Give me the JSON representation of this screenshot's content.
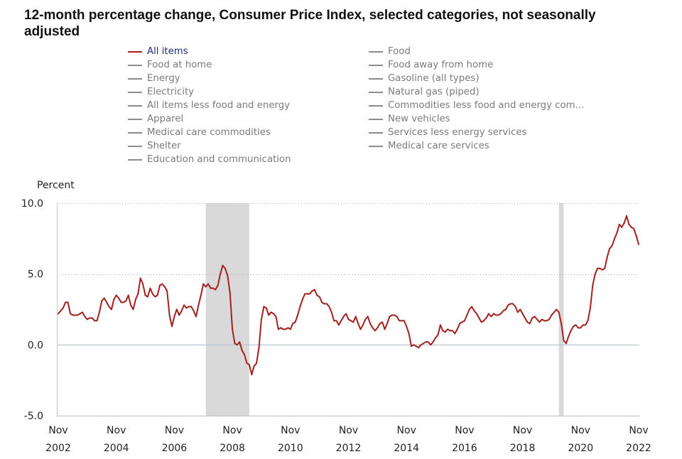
{
  "colors": {
    "legend_active_text": "#1c2b7c",
    "legend_inactive": "#8c8c8c",
    "legend_inactive_text": "#7b7b7b",
    "recession_shading": "#d9d9d9"
  },
  "chart_data": {
    "type": "line",
    "title": "12-month percentage change, Consumer Price Index, selected categories, not seasonally adjusted",
    "ylabel": "Percent",
    "ylim": [
      -5,
      10
    ],
    "xlim": [
      "2002-11",
      "2022-11"
    ],
    "grid": true,
    "legend_position": "top",
    "y_ticks": [
      {
        "value": 10,
        "label": "10.0"
      },
      {
        "value": 5,
        "label": "5.0"
      },
      {
        "value": 0,
        "label": "0.0"
      },
      {
        "value": -5,
        "label": "-5.0"
      }
    ],
    "x_ticks": [
      {
        "date": "2002-11",
        "month": "Nov",
        "year": "2002"
      },
      {
        "date": "2004-11",
        "month": "Nov",
        "year": "2004"
      },
      {
        "date": "2006-11",
        "month": "Nov",
        "year": "2006"
      },
      {
        "date": "2008-11",
        "month": "Nov",
        "year": "2008"
      },
      {
        "date": "2010-11",
        "month": "Nov",
        "year": "2010"
      },
      {
        "date": "2012-11",
        "month": "Nov",
        "year": "2012"
      },
      {
        "date": "2014-11",
        "month": "Nov",
        "year": "2014"
      },
      {
        "date": "2016-11",
        "month": "Nov",
        "year": "2016"
      },
      {
        "date": "2018-11",
        "month": "Nov",
        "year": "2018"
      },
      {
        "date": "2020-11",
        "month": "Nov",
        "year": "2020"
      },
      {
        "date": "2022-11",
        "month": "Nov",
        "year": "2022"
      }
    ],
    "shaded_periods": [
      {
        "start": "2007-12",
        "end": "2009-06"
      },
      {
        "start": "2020-02",
        "end": "2020-04"
      }
    ],
    "legend": [
      {
        "label": "All items",
        "visible": true
      },
      {
        "label": "Food",
        "visible": false
      },
      {
        "label": "Food at home",
        "visible": false
      },
      {
        "label": "Food away from home",
        "visible": false
      },
      {
        "label": "Energy",
        "visible": false
      },
      {
        "label": "Gasoline (all types)",
        "visible": false
      },
      {
        "label": "Electricity",
        "visible": false
      },
      {
        "label": "Natural gas (piped)",
        "visible": false
      },
      {
        "label": "All items less food and energy",
        "visible": false
      },
      {
        "label": "Commodities less food and energy com...",
        "visible": false
      },
      {
        "label": "Apparel",
        "visible": false
      },
      {
        "label": "New vehicles",
        "visible": false
      },
      {
        "label": "Medical care commodities",
        "visible": false
      },
      {
        "label": "Services less energy services",
        "visible": false
      },
      {
        "label": "Shelter",
        "visible": false
      },
      {
        "label": "Medical care services",
        "visible": false
      },
      {
        "label": "Education and communication",
        "visible": false
      }
    ],
    "series": [
      {
        "name": "All items",
        "color": "#a3201f",
        "x": [
          "2002-11",
          "2002-12",
          "2003-01",
          "2003-02",
          "2003-03",
          "2003-04",
          "2003-05",
          "2003-06",
          "2003-07",
          "2003-08",
          "2003-09",
          "2003-10",
          "2003-11",
          "2003-12",
          "2004-01",
          "2004-02",
          "2004-03",
          "2004-04",
          "2004-05",
          "2004-06",
          "2004-07",
          "2004-08",
          "2004-09",
          "2004-10",
          "2004-11",
          "2004-12",
          "2005-01",
          "2005-02",
          "2005-03",
          "2005-04",
          "2005-05",
          "2005-06",
          "2005-07",
          "2005-08",
          "2005-09",
          "2005-10",
          "2005-11",
          "2005-12",
          "2006-01",
          "2006-02",
          "2006-03",
          "2006-04",
          "2006-05",
          "2006-06",
          "2006-07",
          "2006-08",
          "2006-09",
          "2006-10",
          "2006-11",
          "2006-12",
          "2007-01",
          "2007-02",
          "2007-03",
          "2007-04",
          "2007-05",
          "2007-06",
          "2007-07",
          "2007-08",
          "2007-09",
          "2007-10",
          "2007-11",
          "2007-12",
          "2008-01",
          "2008-02",
          "2008-03",
          "2008-04",
          "2008-05",
          "2008-06",
          "2008-07",
          "2008-08",
          "2008-09",
          "2008-10",
          "2008-11",
          "2008-12",
          "2009-01",
          "2009-02",
          "2009-03",
          "2009-04",
          "2009-05",
          "2009-06",
          "2009-07",
          "2009-08",
          "2009-09",
          "2009-10",
          "2009-11",
          "2009-12",
          "2010-01",
          "2010-02",
          "2010-03",
          "2010-04",
          "2010-05",
          "2010-06",
          "2010-07",
          "2010-08",
          "2010-09",
          "2010-10",
          "2010-11",
          "2010-12",
          "2011-01",
          "2011-02",
          "2011-03",
          "2011-04",
          "2011-05",
          "2011-06",
          "2011-07",
          "2011-08",
          "2011-09",
          "2011-10",
          "2011-11",
          "2011-12",
          "2012-01",
          "2012-02",
          "2012-03",
          "2012-04",
          "2012-05",
          "2012-06",
          "2012-07",
          "2012-08",
          "2012-09",
          "2012-10",
          "2012-11",
          "2012-12",
          "2013-01",
          "2013-02",
          "2013-03",
          "2013-04",
          "2013-05",
          "2013-06",
          "2013-07",
          "2013-08",
          "2013-09",
          "2013-10",
          "2013-11",
          "2013-12",
          "2014-01",
          "2014-02",
          "2014-03",
          "2014-04",
          "2014-05",
          "2014-06",
          "2014-07",
          "2014-08",
          "2014-09",
          "2014-10",
          "2014-11",
          "2014-12",
          "2015-01",
          "2015-02",
          "2015-03",
          "2015-04",
          "2015-05",
          "2015-06",
          "2015-07",
          "2015-08",
          "2015-09",
          "2015-10",
          "2015-11",
          "2015-12",
          "2016-01",
          "2016-02",
          "2016-03",
          "2016-04",
          "2016-05",
          "2016-06",
          "2016-07",
          "2016-08",
          "2016-09",
          "2016-10",
          "2016-11",
          "2016-12",
          "2017-01",
          "2017-02",
          "2017-03",
          "2017-04",
          "2017-05",
          "2017-06",
          "2017-07",
          "2017-08",
          "2017-09",
          "2017-10",
          "2017-11",
          "2017-12",
          "2018-01",
          "2018-02",
          "2018-03",
          "2018-04",
          "2018-05",
          "2018-06",
          "2018-07",
          "2018-08",
          "2018-09",
          "2018-10",
          "2018-11",
          "2018-12",
          "2019-01",
          "2019-02",
          "2019-03",
          "2019-04",
          "2019-05",
          "2019-06",
          "2019-07",
          "2019-08",
          "2019-09",
          "2019-10",
          "2019-11",
          "2019-12",
          "2020-01",
          "2020-02",
          "2020-03",
          "2020-04",
          "2020-05",
          "2020-06",
          "2020-07",
          "2020-08",
          "2020-09",
          "2020-10",
          "2020-11",
          "2020-12",
          "2021-01",
          "2021-02",
          "2021-03",
          "2021-04",
          "2021-05",
          "2021-06",
          "2021-07",
          "2021-08",
          "2021-09",
          "2021-10",
          "2021-11",
          "2021-12",
          "2022-01",
          "2022-02",
          "2022-03",
          "2022-04",
          "2022-05",
          "2022-06",
          "2022-07",
          "2022-08",
          "2022-09",
          "2022-10",
          "2022-11"
        ],
        "y": [
          2.2,
          2.4,
          2.6,
          3.0,
          3.0,
          2.2,
          2.1,
          2.1,
          2.1,
          2.2,
          2.3,
          2.0,
          1.8,
          1.9,
          1.9,
          1.7,
          1.7,
          2.3,
          3.1,
          3.3,
          3.0,
          2.7,
          2.5,
          3.2,
          3.5,
          3.3,
          3.0,
          3.0,
          3.1,
          3.5,
          2.8,
          2.5,
          3.2,
          3.6,
          4.7,
          4.3,
          3.5,
          3.4,
          4.0,
          3.6,
          3.4,
          3.5,
          4.2,
          4.3,
          4.1,
          3.8,
          2.1,
          1.3,
          2.0,
          2.5,
          2.1,
          2.4,
          2.8,
          2.6,
          2.7,
          2.7,
          2.4,
          2.0,
          2.8,
          3.5,
          4.3,
          4.1,
          4.3,
          4.0,
          4.0,
          3.9,
          4.2,
          5.0,
          5.6,
          5.4,
          4.9,
          3.7,
          1.1,
          0.1,
          0.0,
          0.2,
          -0.4,
          -0.7,
          -1.3,
          -1.4,
          -2.1,
          -1.5,
          -1.3,
          -0.2,
          1.8,
          2.7,
          2.6,
          2.1,
          2.3,
          2.2,
          2.0,
          1.1,
          1.2,
          1.1,
          1.1,
          1.2,
          1.1,
          1.5,
          1.6,
          2.1,
          2.7,
          3.2,
          3.6,
          3.6,
          3.6,
          3.8,
          3.9,
          3.5,
          3.4,
          3.0,
          2.9,
          2.9,
          2.7,
          2.3,
          1.7,
          1.7,
          1.4,
          1.7,
          2.0,
          2.2,
          1.8,
          1.7,
          1.6,
          2.0,
          1.5,
          1.1,
          1.4,
          1.8,
          2.0,
          1.5,
          1.2,
          1.0,
          1.2,
          1.5,
          1.6,
          1.1,
          1.5,
          2.0,
          2.1,
          2.1,
          2.0,
          1.7,
          1.7,
          1.7,
          1.3,
          0.8,
          -0.1,
          0.0,
          -0.1,
          -0.2,
          0.0,
          0.1,
          0.2,
          0.2,
          0.0,
          0.2,
          0.5,
          0.7,
          1.4,
          1.0,
          0.9,
          1.1,
          1.0,
          1.0,
          0.8,
          1.1,
          1.5,
          1.6,
          1.7,
          2.1,
          2.5,
          2.7,
          2.4,
          2.2,
          1.9,
          1.6,
          1.7,
          1.9,
          2.2,
          2.0,
          2.2,
          2.1,
          2.1,
          2.2,
          2.4,
          2.5,
          2.8,
          2.9,
          2.9,
          2.7,
          2.3,
          2.5,
          2.2,
          1.9,
          1.6,
          1.5,
          1.9,
          2.0,
          1.8,
          1.6,
          1.8,
          1.7,
          1.7,
          1.8,
          2.1,
          2.3,
          2.5,
          2.3,
          1.5,
          0.3,
          0.1,
          0.6,
          1.0,
          1.3,
          1.4,
          1.2,
          1.2,
          1.4,
          1.4,
          1.7,
          2.6,
          4.2,
          5.0,
          5.4,
          5.4,
          5.3,
          5.4,
          6.2,
          6.8,
          7.0,
          7.5,
          7.9,
          8.5,
          8.3,
          8.6,
          9.1,
          8.5,
          8.3,
          8.2,
          7.7,
          7.1
        ]
      }
    ]
  }
}
